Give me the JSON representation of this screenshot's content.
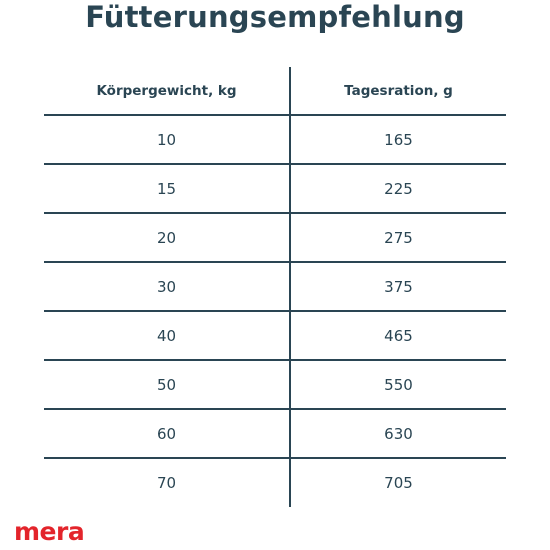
{
  "title": "Fütterungsempfehlung",
  "table": {
    "headers": [
      "Körpergewicht, kg",
      "Tagesration, g"
    ],
    "rows": [
      [
        "10",
        "165"
      ],
      [
        "15",
        "225"
      ],
      [
        "20",
        "275"
      ],
      [
        "30",
        "375"
      ],
      [
        "40",
        "465"
      ],
      [
        "50",
        "550"
      ],
      [
        "60",
        "630"
      ],
      [
        "70",
        "705"
      ]
    ]
  },
  "logo": "mera",
  "colors": {
    "text": "#2a4553",
    "lines": "#2a4553",
    "brand": "#e3242b",
    "background": "#ffffff"
  }
}
